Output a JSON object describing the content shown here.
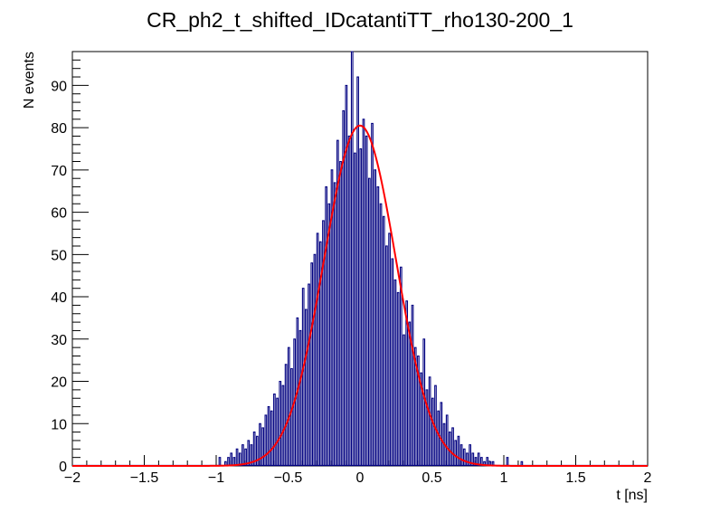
{
  "chart_data": {
    "type": "histogram",
    "title": "CR_ph2_t_shifted_IDcatantiTT_rho130-200_1",
    "xlabel": "t [ns]",
    "ylabel": "N events",
    "xlim": [
      -2,
      2
    ],
    "ylim": [
      0,
      98
    ],
    "x_ticks": [
      -2,
      -1.5,
      -1,
      -0.5,
      0,
      0.5,
      1,
      1.5,
      2
    ],
    "x_tick_labels": [
      "−2",
      "−1.5",
      "−1",
      "−0.5",
      "0",
      "0.5",
      "1",
      "1.5",
      "2"
    ],
    "y_ticks": [
      0,
      10,
      20,
      30,
      40,
      50,
      60,
      70,
      80,
      90
    ],
    "y_tick_labels": [
      "0",
      "10",
      "20",
      "30",
      "40",
      "50",
      "60",
      "70",
      "80",
      "90"
    ],
    "series": [
      {
        "name": "histogram",
        "color": "#000080",
        "bin_width": 0.01,
        "bin_low_edges": [
          -0.98,
          -0.94,
          -0.92,
          -0.9,
          -0.88,
          -0.86,
          -0.84,
          -0.82,
          -0.8,
          -0.78,
          -0.76,
          -0.74,
          -0.72,
          -0.7,
          -0.68,
          -0.66,
          -0.64,
          -0.62,
          -0.6,
          -0.58,
          -0.56,
          -0.54,
          -0.52,
          -0.5,
          -0.48,
          -0.46,
          -0.44,
          -0.42,
          -0.4,
          -0.38,
          -0.36,
          -0.34,
          -0.32,
          -0.3,
          -0.28,
          -0.26,
          -0.24,
          -0.22,
          -0.2,
          -0.18,
          -0.16,
          -0.14,
          -0.12,
          -0.1,
          -0.08,
          -0.06,
          -0.04,
          -0.02,
          0,
          0.02,
          0.04,
          0.06,
          0.08,
          0.1,
          0.12,
          0.14,
          0.16,
          0.18,
          0.2,
          0.22,
          0.24,
          0.26,
          0.28,
          0.3,
          0.32,
          0.34,
          0.36,
          0.38,
          0.4,
          0.42,
          0.44,
          0.46,
          0.48,
          0.5,
          0.52,
          0.54,
          0.56,
          0.58,
          0.6,
          0.62,
          0.64,
          0.66,
          0.68,
          0.7,
          0.72,
          0.74,
          0.76,
          0.78,
          0.8,
          0.82,
          0.84,
          0.86,
          0.88,
          0.9,
          0.92,
          1.02,
          1.12
        ],
        "counts": [
          2,
          1,
          2,
          3,
          2,
          4,
          3,
          5,
          4,
          6,
          5,
          8,
          7,
          10,
          9,
          12,
          14,
          13,
          17,
          16,
          20,
          19,
          24,
          28,
          23,
          30,
          35,
          32,
          42,
          37,
          43,
          48,
          50,
          55,
          53,
          58,
          66,
          62,
          70,
          67,
          77,
          72,
          84,
          90,
          78,
          98,
          74,
          92,
          75,
          82,
          78,
          68,
          81,
          70,
          66,
          62,
          59,
          52,
          55,
          49,
          44,
          41,
          47,
          31,
          39,
          34,
          38,
          28,
          26,
          22,
          30,
          18,
          21,
          16,
          19,
          13,
          15,
          10,
          12,
          8,
          9,
          6,
          7,
          5,
          4,
          3,
          5,
          3,
          2,
          3,
          2,
          1,
          2,
          1,
          1,
          2,
          1
        ]
      },
      {
        "name": "gaussian fit",
        "color": "#ff0000",
        "function": "gaussian",
        "amplitude": 80.5,
        "mean": 0.0,
        "sigma": 0.25
      }
    ]
  }
}
